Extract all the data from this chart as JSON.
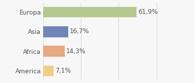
{
  "categories": [
    "Europa",
    "Asia",
    "Africa",
    "America"
  ],
  "values": [
    61.9,
    16.7,
    14.3,
    7.1
  ],
  "labels": [
    "61,9%",
    "16,7%",
    "14,3%",
    "7,1%"
  ],
  "bar_colors": [
    "#b5c98e",
    "#6f86b8",
    "#e8a97e",
    "#f0d080"
  ],
  "background_color": "#f7f7f7",
  "xlim": [
    0,
    85
  ],
  "bar_height": 0.55,
  "label_fontsize": 6.5,
  "tick_fontsize": 6.5,
  "grid_color": "#e0e0e0"
}
